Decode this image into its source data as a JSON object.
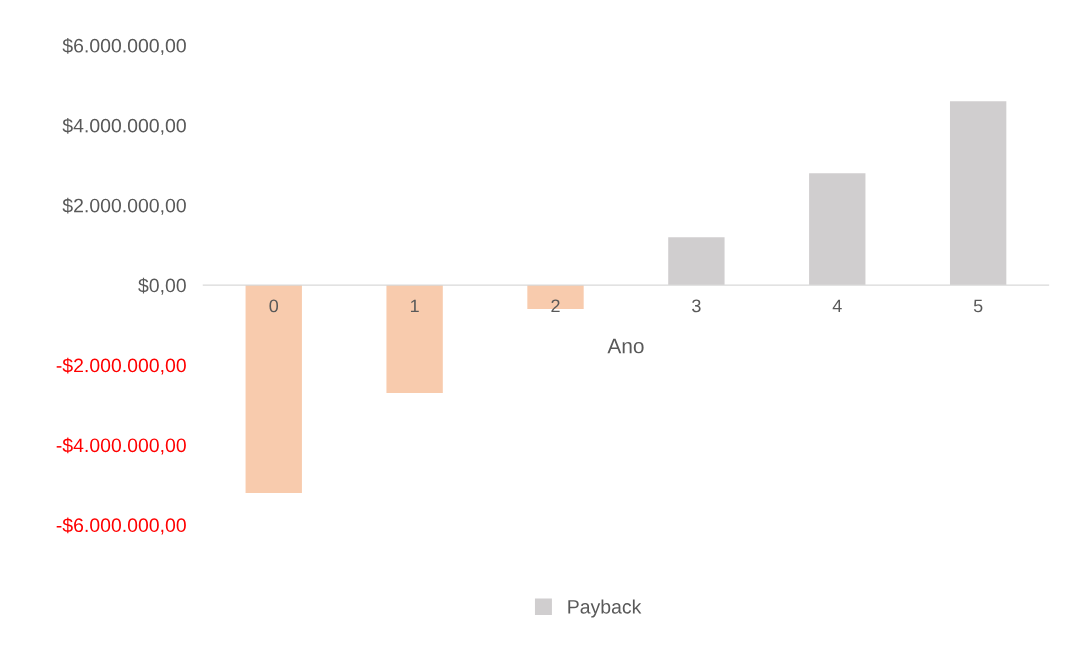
{
  "chart_data": {
    "type": "bar",
    "xlabel": "Ano",
    "categories": [
      "0",
      "1",
      "2",
      "3",
      "4",
      "5"
    ],
    "series": [
      {
        "name": "Payback",
        "color": "#d0cecf",
        "colors": [
          "#f8cbad",
          "#f8cbad",
          "#f8cbad",
          "#d0cecf",
          "#d0cecf",
          "#d0cecf"
        ],
        "values": [
          -5200000,
          -2700000,
          -600000,
          1200000,
          2800000,
          4600000
        ]
      }
    ],
    "ylim": [
      -6000000,
      6000000
    ],
    "yticks": [
      {
        "value": -6000000,
        "label": "-$6.000.000,00"
      },
      {
        "value": -4000000,
        "label": "-$4.000.000,00"
      },
      {
        "value": -2000000,
        "label": "-$2.000.000,00"
      },
      {
        "value": 0,
        "label": "$0,00"
      },
      {
        "value": 2000000,
        "label": "$2.000.000,00"
      },
      {
        "value": 4000000,
        "label": "$4.000.000,00"
      },
      {
        "value": 6000000,
        "label": "$6.000.000,00"
      }
    ],
    "grid": false,
    "legend": "bottom"
  }
}
